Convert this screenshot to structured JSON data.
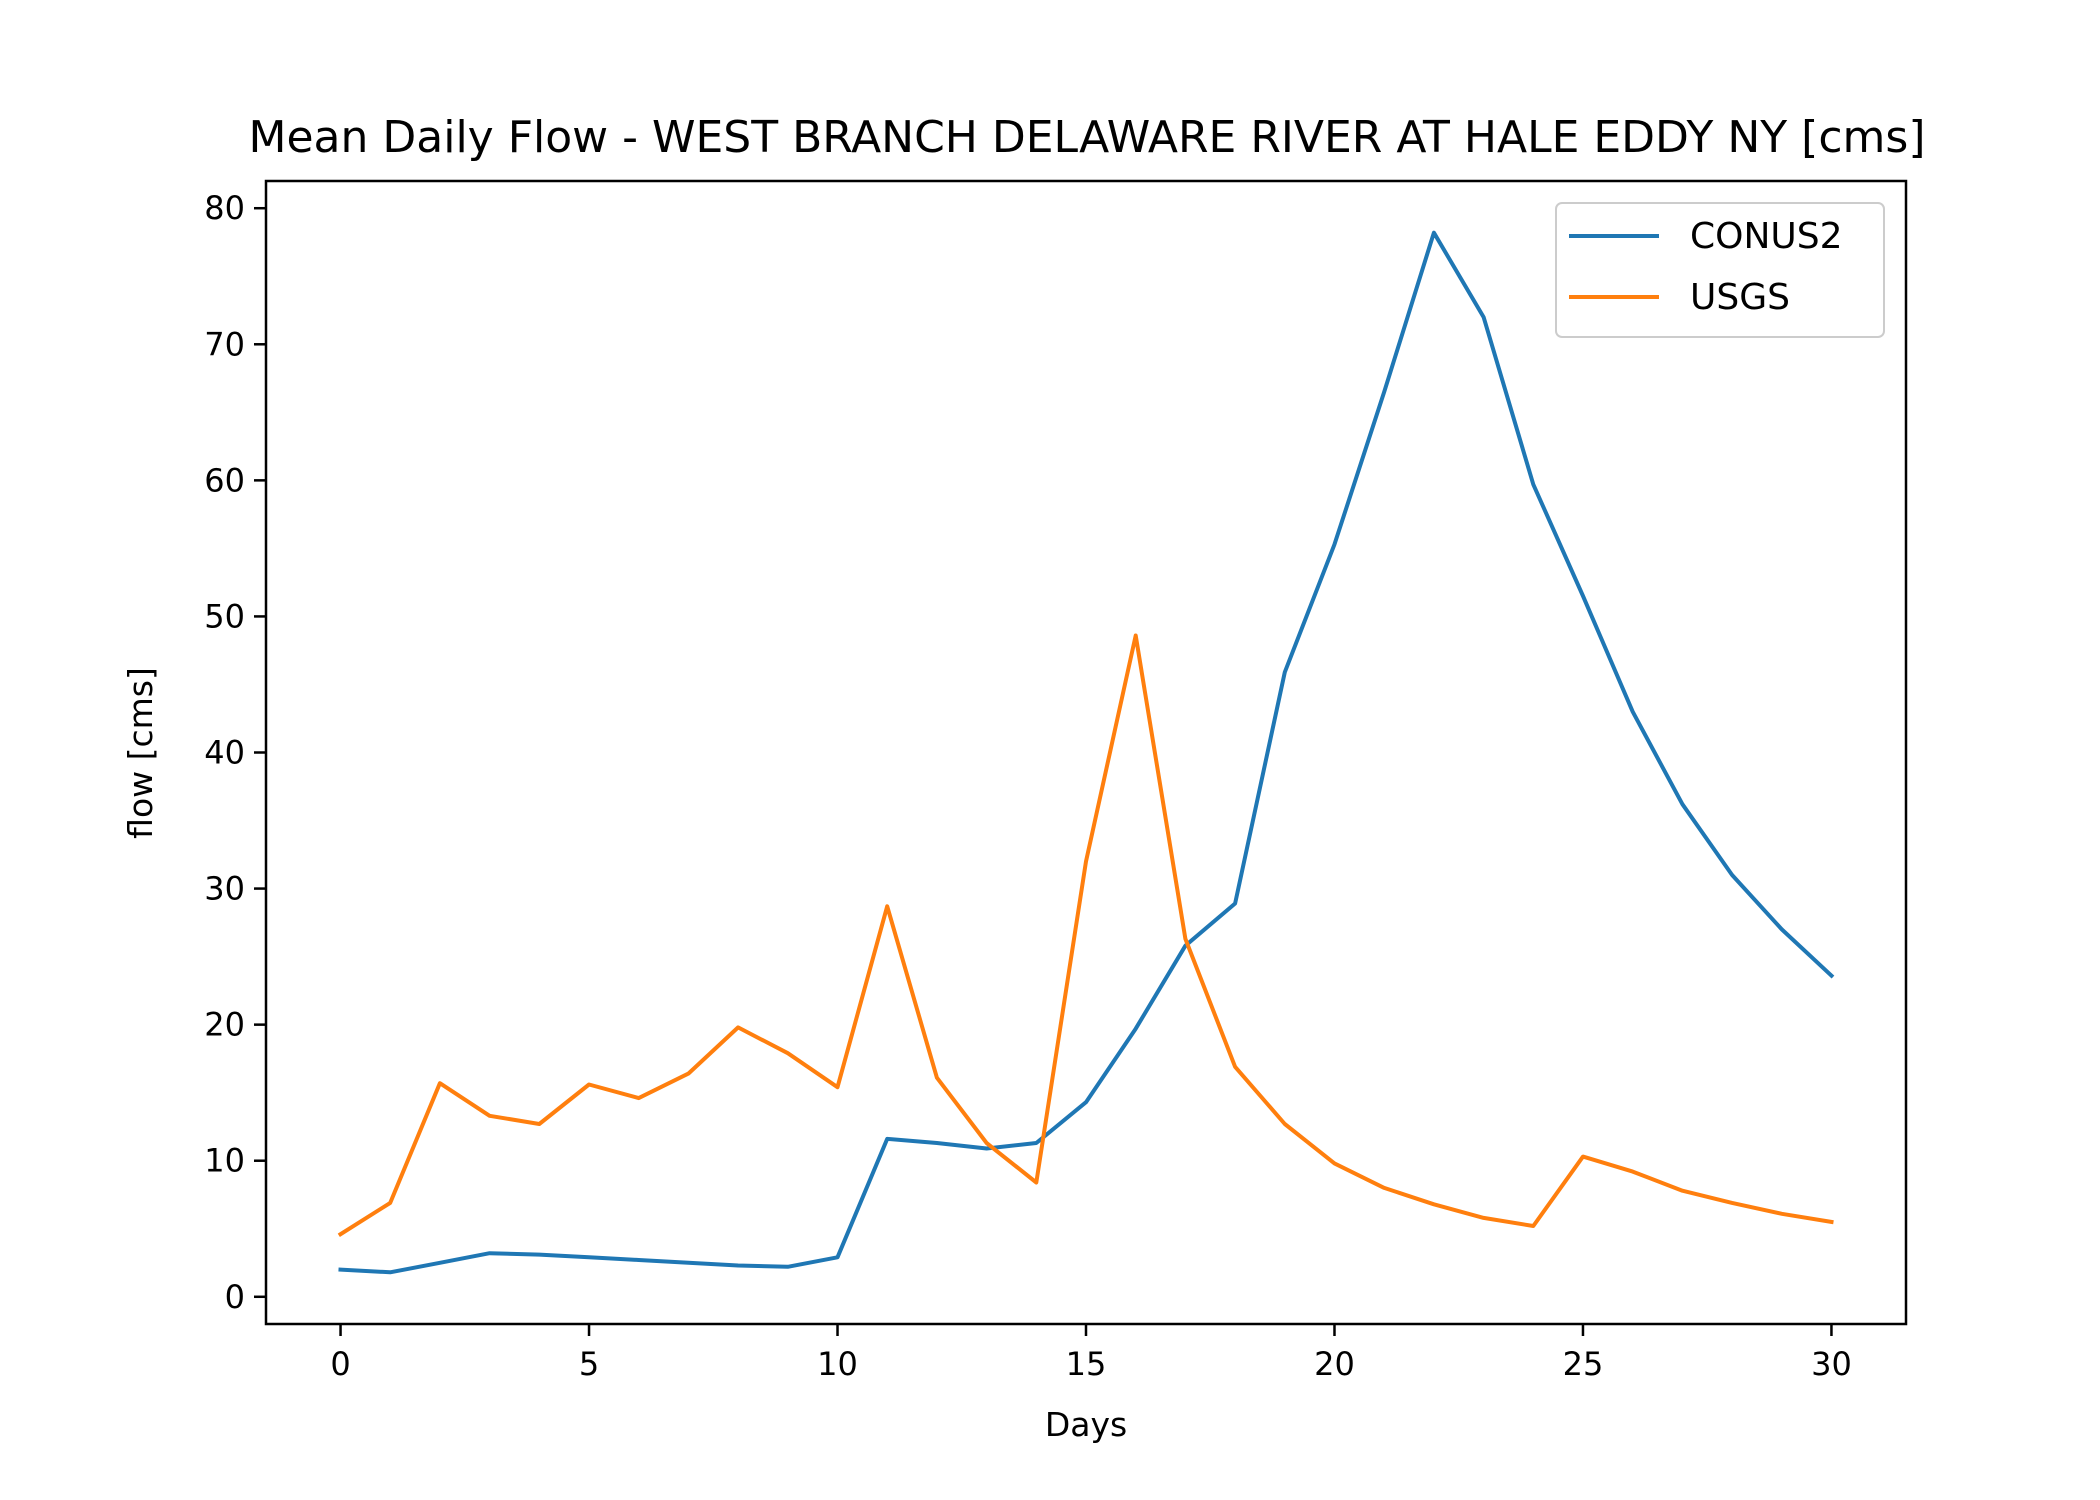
{
  "chart_data": {
    "type": "line",
    "title": "Mean Daily Flow - WEST BRANCH DELAWARE RIVER AT HALE EDDY NY [cms]",
    "xlabel": "Days",
    "ylabel": "flow [cms]",
    "xlim": [
      -1.5,
      31.5
    ],
    "ylim": [
      -2,
      82
    ],
    "xticks": [
      0,
      5,
      10,
      15,
      20,
      25,
      30
    ],
    "yticks": [
      0,
      10,
      20,
      30,
      40,
      50,
      60,
      70,
      80
    ],
    "grid": false,
    "legend_position": "top-right",
    "x": [
      0,
      1,
      2,
      3,
      4,
      5,
      6,
      7,
      8,
      9,
      10,
      11,
      12,
      13,
      14,
      15,
      16,
      17,
      18,
      19,
      20,
      21,
      22,
      23,
      24,
      25,
      26,
      27,
      28,
      29,
      30
    ],
    "series": [
      {
        "name": "CONUS2",
        "color": "#1f77b4",
        "values": [
          2.0,
          1.8,
          2.5,
          3.2,
          3.1,
          2.9,
          2.7,
          2.5,
          2.3,
          2.2,
          2.9,
          11.6,
          11.3,
          10.9,
          11.3,
          14.3,
          19.7,
          25.8,
          28.9,
          45.9,
          55.3,
          66.5,
          78.2,
          72.0,
          59.7,
          51.5,
          43.0,
          36.2,
          31.0,
          27.0,
          23.6
        ]
      },
      {
        "name": "USGS",
        "color": "#ff7f0e",
        "values": [
          4.6,
          6.9,
          15.7,
          13.3,
          12.7,
          15.6,
          14.6,
          16.4,
          19.8,
          17.9,
          15.4,
          28.7,
          16.1,
          11.3,
          8.4,
          32.0,
          48.6,
          26.3,
          16.9,
          12.7,
          9.8,
          8.0,
          6.8,
          5.8,
          5.2,
          10.3,
          9.2,
          7.8,
          6.9,
          6.1,
          5.5
        ]
      }
    ]
  }
}
